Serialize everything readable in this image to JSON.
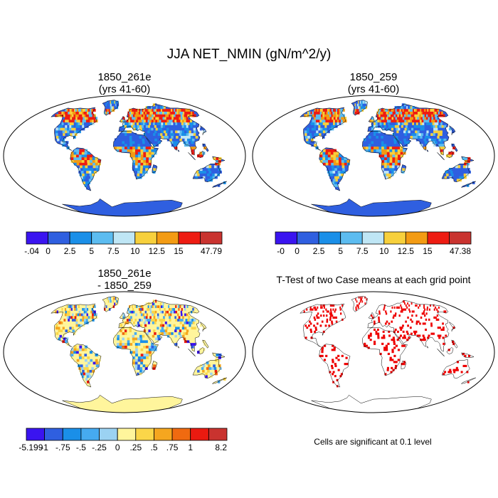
{
  "title": "JJA NET_NMIN (gN/m^2/y)",
  "panels": [
    {
      "id": "case1",
      "title_lines": [
        "1850_261e",
        "(yrs 41-60)"
      ],
      "kind": "field",
      "colors": [
        "#3a14f0",
        "#2f5fe0",
        "#1a8fe8",
        "#5cbcf0",
        "#bfe6f5",
        "#f7d03c",
        "#f39b13",
        "#ee1c12",
        "#c9332f"
      ],
      "colorbar_labels": [
        "-.04",
        "0",
        "2.5",
        "5",
        "7.5",
        "10",
        "12.5",
        "15",
        "47.79"
      ]
    },
    {
      "id": "case2",
      "title_lines": [
        "1850_259",
        "(yrs 41-60)"
      ],
      "kind": "field",
      "colors": [
        "#3a14f0",
        "#2f5fe0",
        "#1a8fe8",
        "#5cbcf0",
        "#bfe6f5",
        "#f7d03c",
        "#f39b13",
        "#ee1c12",
        "#c9332f"
      ],
      "colorbar_labels": [
        "-0",
        "0",
        "2.5",
        "5",
        "7.5",
        "10",
        "12.5",
        "15",
        "47.38"
      ]
    },
    {
      "id": "difference",
      "title_lines": [
        "1850_261e",
        "- 1850_259"
      ],
      "kind": "difference",
      "colors": [
        "#3a14f0",
        "#2f5fe0",
        "#1a8fe8",
        "#46aaf0",
        "#9bd2f2",
        "#fff59c",
        "#fbd649",
        "#f5a61f",
        "#f06a10",
        "#ea1a10",
        "#c9332f"
      ],
      "colorbar_labels": [
        "-5.199",
        "-1",
        "-.75",
        "-.5",
        "-.25",
        "0",
        ".25",
        ".5",
        ".75",
        "1",
        "8.2"
      ]
    },
    {
      "id": "ttest",
      "title_lines": [
        "T-Test of two Case means at each grid point"
      ],
      "kind": "ttest",
      "colors": [
        "#ee0000"
      ],
      "footnote": "Cells are significant at 0.1 level"
    }
  ]
}
